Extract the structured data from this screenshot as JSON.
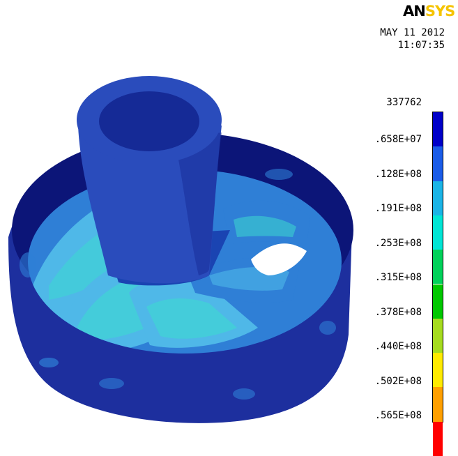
{
  "brand": {
    "logo_part1": "AN",
    "logo_part2": "SYS"
  },
  "timestamp": {
    "date": "MAY 11 2012",
    "time": "11:07:35"
  },
  "legend": {
    "labels": [
      "337762",
      ".658E+07",
      ".128E+08",
      ".191E+08",
      ".253E+08",
      ".315E+08",
      ".378E+08",
      ".440E+08",
      ".502E+08",
      ".565E+08"
    ],
    "colors": [
      "#0000c8",
      "#1a5ce8",
      "#1ab4e6",
      "#00e5d5",
      "#00d25a",
      "#00c800",
      "#a6dc1e",
      "#ffeb00",
      "#ffa000",
      "#ff0000"
    ]
  },
  "model_colors": {
    "body": "#1d2f9e",
    "body_dark": "#0c1578",
    "hub": "#2a4cbc",
    "hub_dark": "#152a96",
    "blade_light": "#4fb8e8",
    "blade_mid": "#2f7fd6",
    "blade_cyan": "#3dd8d0",
    "blade_dark": "#1a44b2"
  }
}
